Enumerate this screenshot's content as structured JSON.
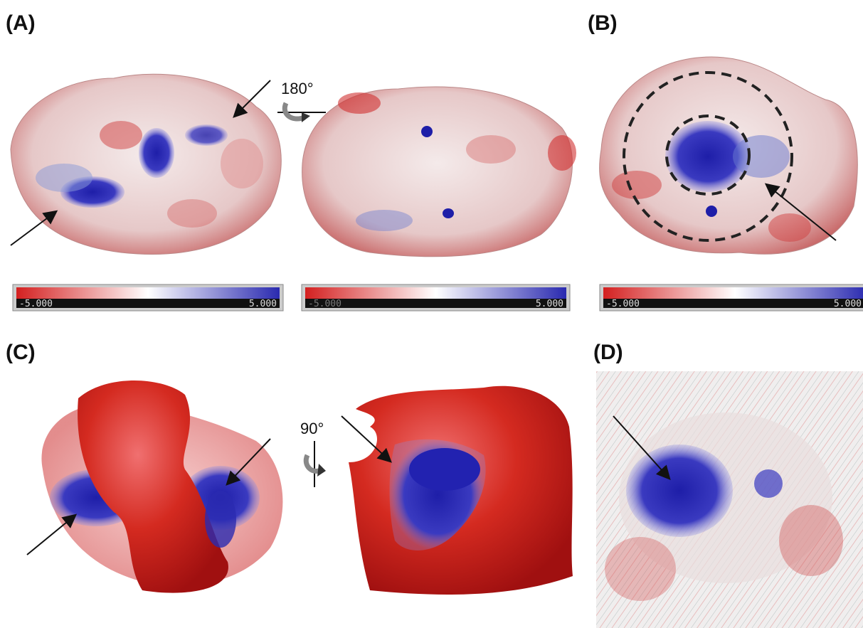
{
  "panels": [
    {
      "label": "(A)",
      "rotation": "180°",
      "colorbars": [
        {
          "min": "-5.000",
          "max": "5.000"
        },
        {
          "min": "-5.000",
          "max": "5.000"
        }
      ]
    },
    {
      "label": "(B)",
      "colorbars": [
        {
          "min": "-5.000",
          "max": "5.000"
        }
      ]
    },
    {
      "label": "(C)",
      "rotation": "90°"
    },
    {
      "label": "(D)"
    }
  ]
}
